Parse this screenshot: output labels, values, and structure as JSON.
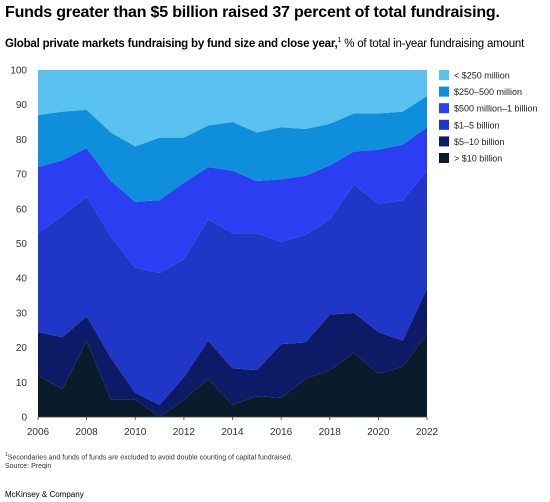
{
  "headline": "Funds greater than $5 billion raised 37 percent of total fundraising.",
  "subtitle": {
    "bold": "Global private markets fundraising by fund size and close year,",
    "footnote_marker": "1",
    "rest": " % of total in-year fundraising amount"
  },
  "footnote": {
    "marker": "1",
    "text": "Secondaries and funds of funds are excluded to avoid double counting of capital fundraised.",
    "source": "Source: Preqin"
  },
  "brand": "McKinsey & Company",
  "chart_data": {
    "type": "area",
    "stacked": true,
    "x": [
      2006,
      2007,
      2008,
      2009,
      2010,
      2011,
      2012,
      2013,
      2014,
      2015,
      2016,
      2017,
      2018,
      2019,
      2020,
      2021,
      2022
    ],
    "xticks": [
      "2006",
      "2008",
      "2010",
      "2012",
      "2014",
      "2016",
      "2018",
      "2020",
      "2022"
    ],
    "ylim": [
      0,
      100
    ],
    "yticks": [
      "0",
      "10",
      "20",
      "30",
      "40",
      "50",
      "60",
      "70",
      "80",
      "90",
      "100"
    ],
    "grid": false,
    "legend_position": "right",
    "series": [
      {
        "name": "> $10 billion",
        "color": "#0a1c2c",
        "values": [
          12,
          8,
          22,
          5,
          5,
          0,
          5,
          11,
          3.5,
          6,
          5.5,
          11,
          13.5,
          18.5,
          12.5,
          14.5,
          24
        ]
      },
      {
        "name": "$5–10 billion",
        "color": "#0d1b66",
        "values": [
          12.5,
          15,
          7,
          12,
          2,
          3.5,
          6.5,
          11,
          10.5,
          7.5,
          15.5,
          10.5,
          16,
          11.5,
          12,
          7.5,
          13
        ]
      },
      {
        "name": "$1–5 billion",
        "color": "#1f36c6",
        "values": [
          28.5,
          35,
          34.5,
          35,
          36,
          38,
          34,
          35,
          39,
          39.5,
          29.5,
          31,
          27.5,
          37,
          37,
          40.5,
          34
        ]
      },
      {
        "name": "$500 million–1 billion",
        "color": "#2c3ef2",
        "values": [
          19,
          16,
          14,
          16,
          19,
          21,
          22,
          15,
          18,
          15,
          18,
          17,
          15.5,
          9.5,
          15.5,
          16,
          12.5
        ]
      },
      {
        "name": "$250–500 million",
        "color": "#0f8fdb",
        "values": [
          15,
          14,
          11,
          14,
          16,
          18,
          13,
          12,
          14,
          14,
          15,
          13.5,
          12,
          11,
          10.5,
          9.5,
          9
        ]
      },
      {
        "name": "< $250 million",
        "color": "#59c2f1",
        "values": [
          13,
          12,
          11.5,
          18,
          22,
          19.5,
          19.5,
          16,
          15,
          18,
          16.5,
          17,
          15.5,
          12.5,
          12.5,
          12,
          7.5
        ]
      }
    ]
  }
}
